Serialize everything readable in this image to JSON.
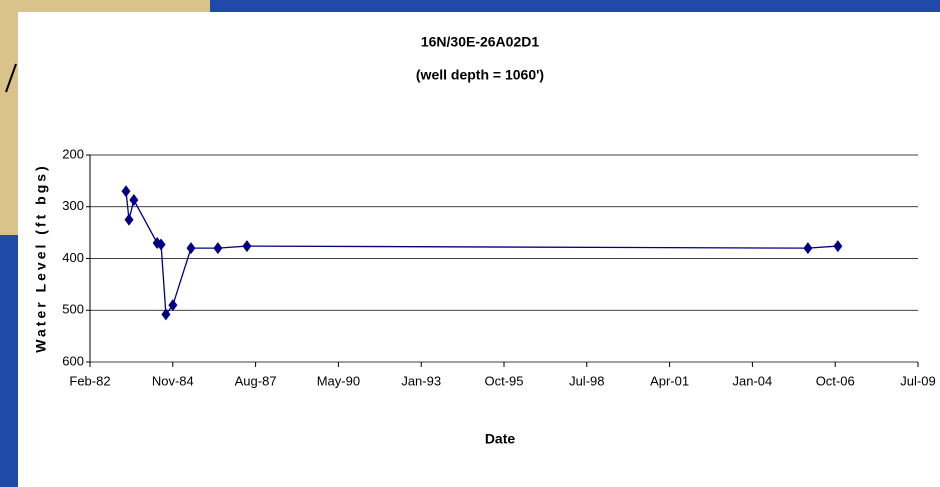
{
  "chart_data": {
    "type": "line",
    "title": "16N/30E-26A02D1",
    "subtitle": "(well depth = 1060')",
    "x_label": "Date",
    "y_label": "Water Level (ft bgs)",
    "x": [
      1983.29,
      1983.39,
      1983.55,
      1984.32,
      1984.45,
      1984.61,
      1984.84,
      1985.44,
      1986.33,
      1987.29,
      2005.84,
      2006.83
    ],
    "series": [
      {
        "color": "#000080",
        "values": [
          270,
          325,
          287,
          370,
          373,
          508,
          490,
          380,
          380,
          376,
          380,
          376
        ]
      }
    ],
    "xlim": [
      1982.1,
      2009.48
    ],
    "xticks": [
      {
        "value": 1982.1,
        "label": "Feb-82"
      },
      {
        "value": 1984.838,
        "label": "Nov-84"
      },
      {
        "value": 1987.576,
        "label": "Aug-87"
      },
      {
        "value": 1990.314,
        "label": "May-90"
      },
      {
        "value": 1993.052,
        "label": "Jan-93"
      },
      {
        "value": 1995.79,
        "label": "Oct-95"
      },
      {
        "value": 1998.528,
        "label": "Jul-98"
      },
      {
        "value": 2001.266,
        "label": "Apr-01"
      },
      {
        "value": 2004.004,
        "label": "Jan-04"
      },
      {
        "value": 2006.742,
        "label": "Oct-06"
      },
      {
        "value": 2009.48,
        "label": "Jul-09"
      }
    ],
    "ylim": [
      600,
      200
    ],
    "yticks": [
      200,
      300,
      400,
      500,
      600
    ],
    "grid": true
  }
}
